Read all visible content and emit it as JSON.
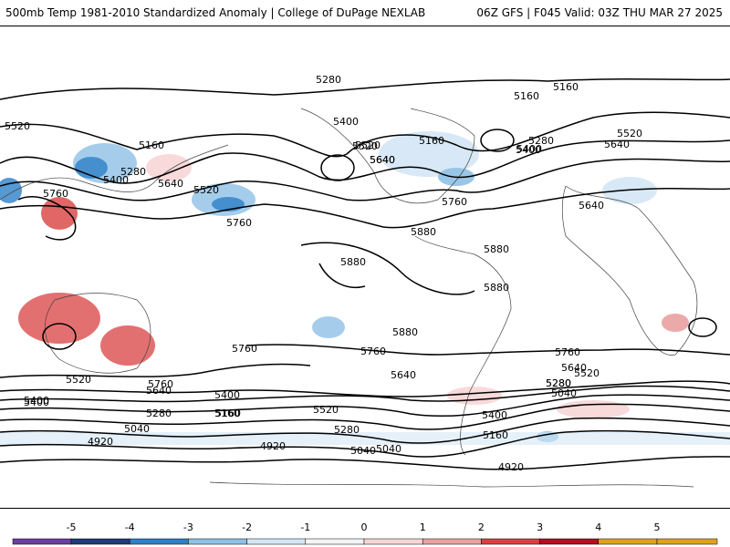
{
  "header": {
    "title_left": "500mb Temp 1981-2010 Standardized Anomaly | College of DuPage NEXLAB",
    "title_right": "06Z GFS | F045 Valid: 03Z THU MAR 27 2025"
  },
  "contour_labels": [
    "5280",
    "5160",
    "5160",
    "5520",
    "5400",
    "5160",
    "5280",
    "5400",
    "5520",
    "5640",
    "5760",
    "5640",
    "5520",
    "5760",
    "5400",
    "5520",
    "5640",
    "5160",
    "5280",
    "5400",
    "5520",
    "5640",
    "5760",
    "5880",
    "5880",
    "5880",
    "5880",
    "5880",
    "5760",
    "5520",
    "5640",
    "5760",
    "5640",
    "5400",
    "5280",
    "5160",
    "5040",
    "5520",
    "5400",
    "5280",
    "5160",
    "5040",
    "4920",
    "4920",
    "5040",
    "5160",
    "5280",
    "5400",
    "5640",
    "5760",
    "5640",
    "5520",
    "5280",
    "5040",
    "4920",
    "5400",
    "5760"
  ],
  "colorbar": {
    "ticks": [
      "-5",
      "-4",
      "-3",
      "-2",
      "-1",
      "0",
      "1",
      "2",
      "3",
      "4",
      "5"
    ],
    "colors": [
      "#6a3fa0",
      "#1f3b7a",
      "#2d7fc8",
      "#8fc1e6",
      "#d4e6f5",
      "#f4f4f4",
      "#f7d6d6",
      "#eaa0a0",
      "#d94040",
      "#b01020",
      "#e0a020"
    ]
  }
}
